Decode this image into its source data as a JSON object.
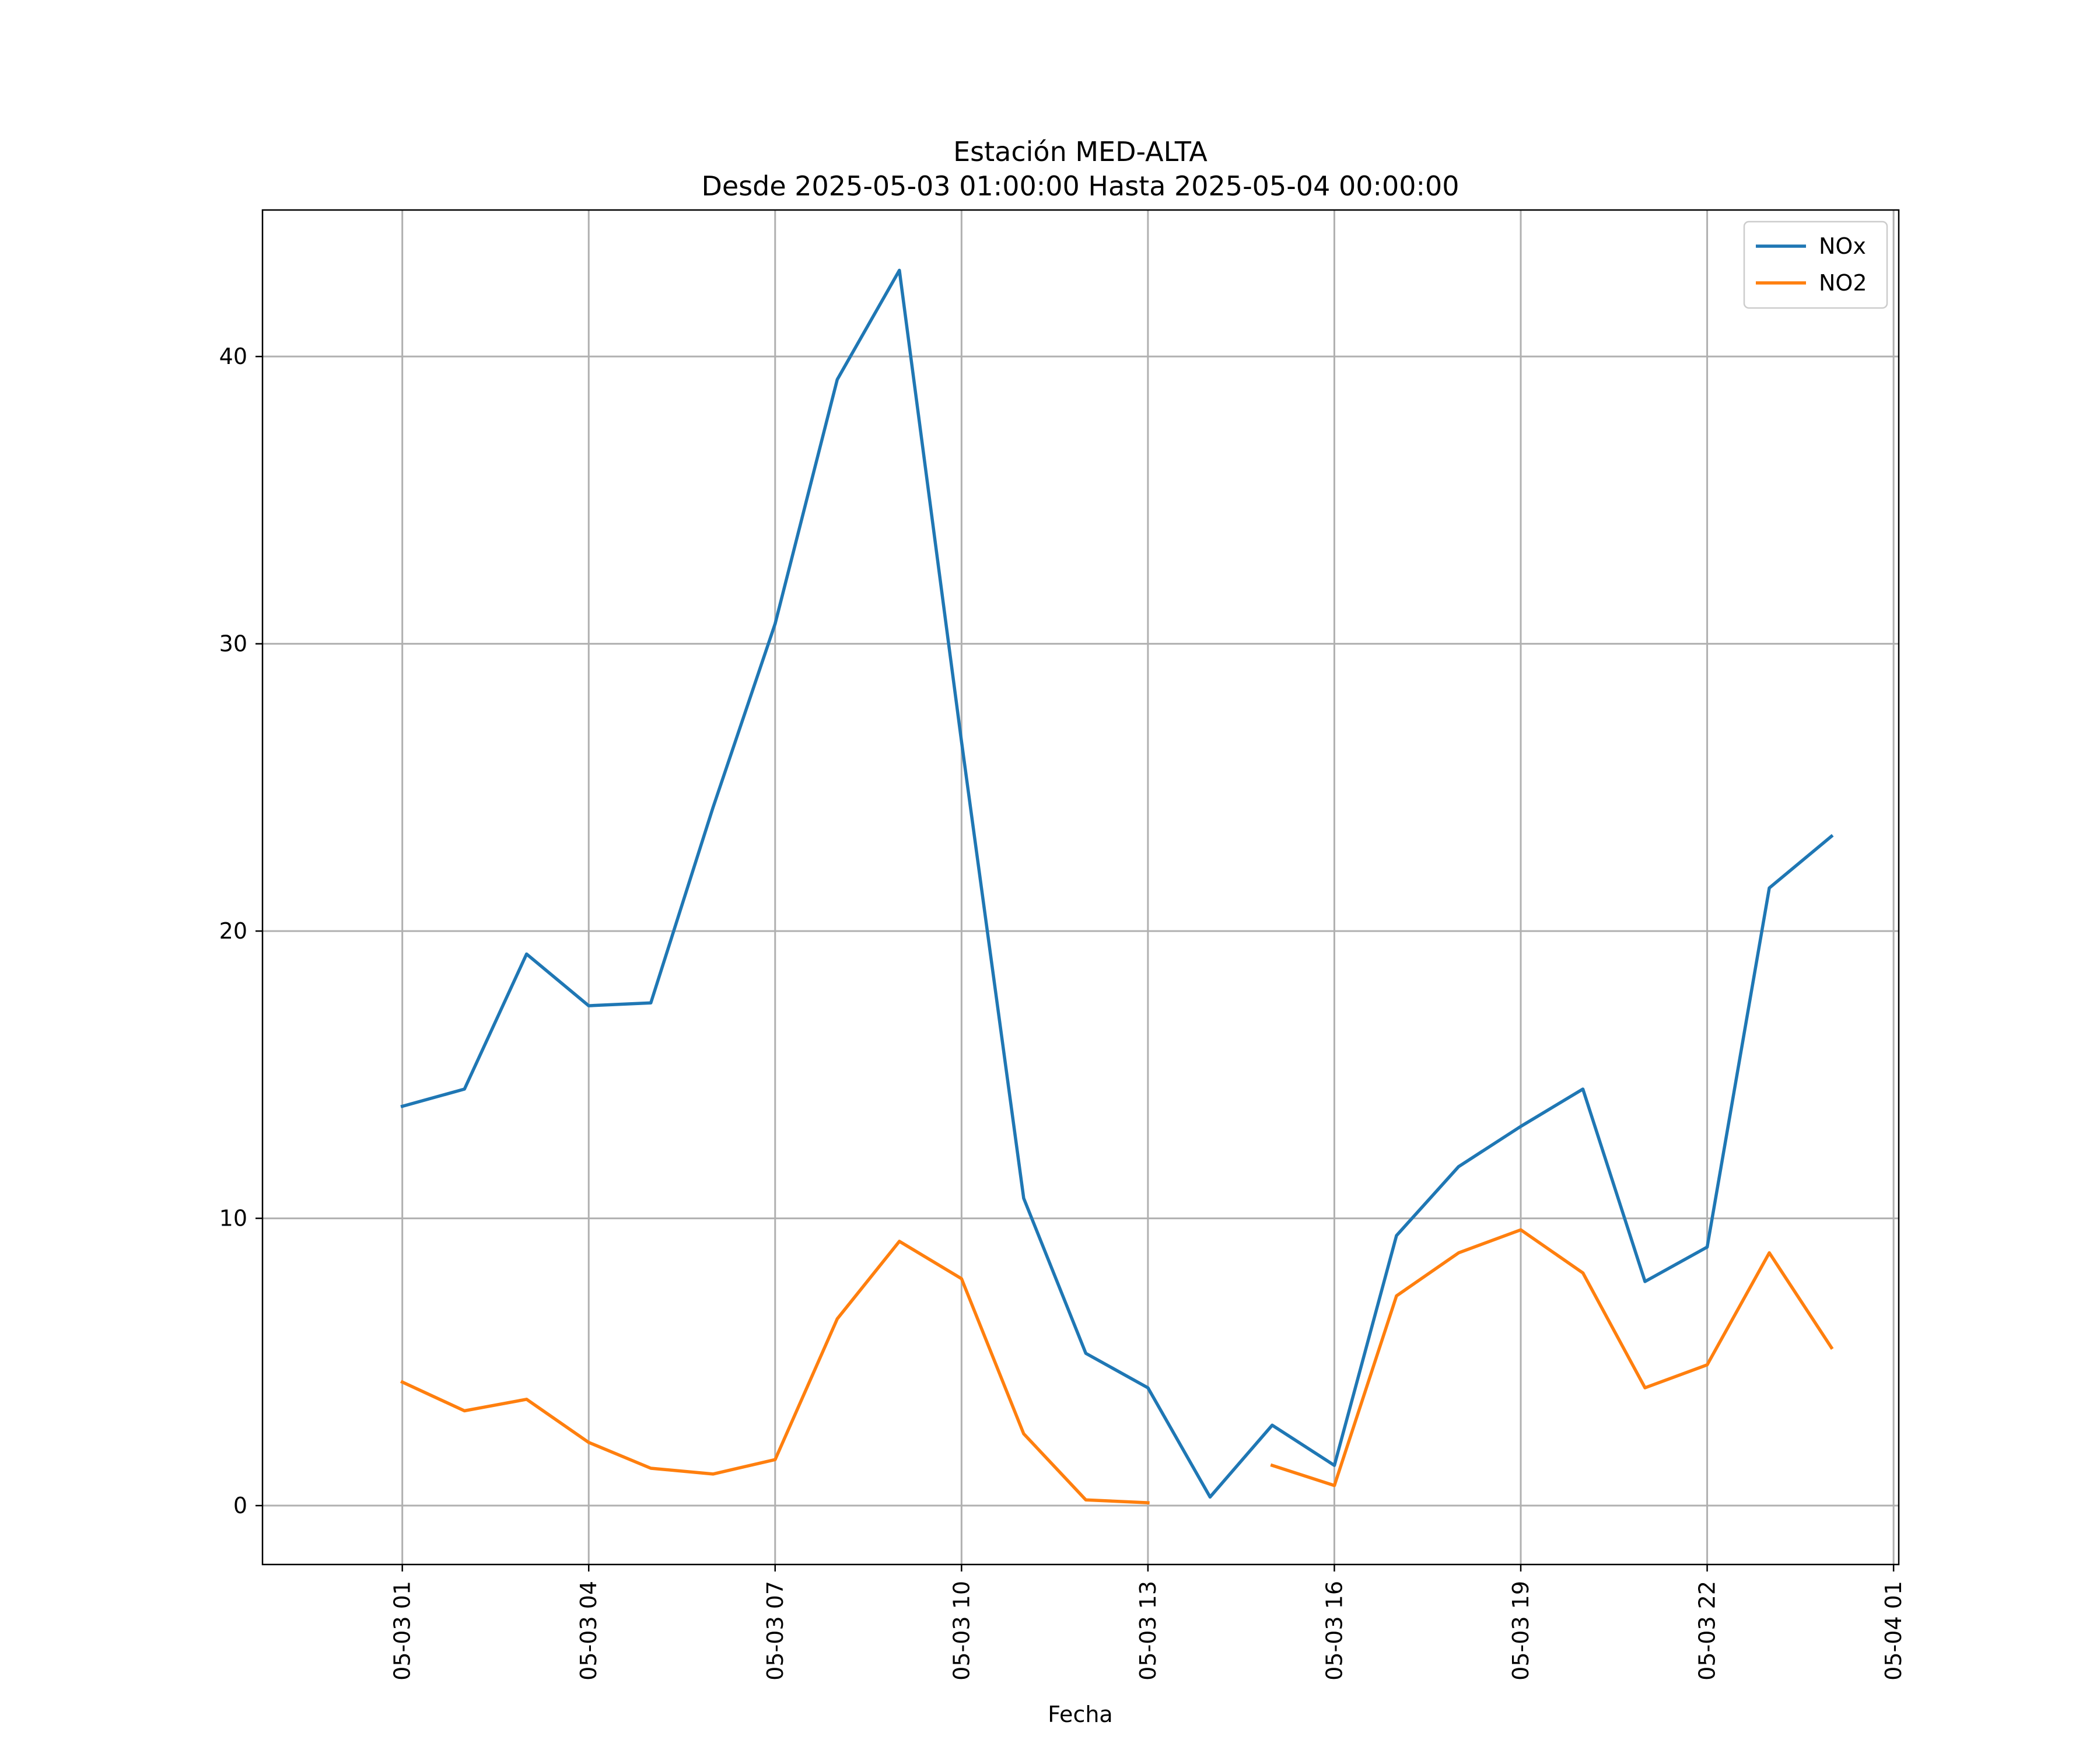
{
  "chart_data": {
    "type": "line",
    "title": "Estación MED-ALTA",
    "subtitle": "Desde 2025-05-03 01:00:00 Hasta 2025-05-04 00:00:00",
    "xlabel": "Fecha",
    "ylabel": "",
    "x": [
      "2025-05-03 01:00",
      "2025-05-03 02:00",
      "2025-05-03 03:00",
      "2025-05-03 04:00",
      "2025-05-03 05:00",
      "2025-05-03 06:00",
      "2025-05-03 07:00",
      "2025-05-03 08:00",
      "2025-05-03 09:00",
      "2025-05-03 10:00",
      "2025-05-03 11:00",
      "2025-05-03 12:00",
      "2025-05-03 13:00",
      "2025-05-03 14:00",
      "2025-05-03 15:00",
      "2025-05-03 16:00",
      "2025-05-03 17:00",
      "2025-05-03 18:00",
      "2025-05-03 19:00",
      "2025-05-03 20:00",
      "2025-05-03 21:00",
      "2025-05-03 22:00",
      "2025-05-03 23:00",
      "2025-05-04 00:00"
    ],
    "series": [
      {
        "name": "NOx",
        "color": "#1f77b4",
        "values": [
          13.9,
          14.5,
          19.2,
          17.4,
          17.5,
          24.3,
          30.7,
          39.2,
          43.0,
          26.6,
          10.7,
          5.3,
          4.1,
          0.3,
          2.8,
          1.4,
          9.4,
          11.8,
          13.2,
          14.5,
          7.8,
          9.0,
          21.5,
          23.3
        ]
      },
      {
        "name": "NO2",
        "color": "#ff7f0e",
        "values": [
          4.3,
          3.3,
          3.7,
          2.2,
          1.3,
          1.1,
          1.6,
          6.5,
          9.2,
          7.9,
          2.5,
          0.2,
          0.1,
          null,
          1.4,
          0.7,
          7.3,
          8.8,
          9.6,
          8.1,
          4.1,
          4.9,
          8.8,
          5.5
        ]
      }
    ],
    "xticks": [
      {
        "x": "2025-05-03 01:00",
        "label": "05-03 01"
      },
      {
        "x": "2025-05-03 04:00",
        "label": "05-03 04"
      },
      {
        "x": "2025-05-03 07:00",
        "label": "05-03 07"
      },
      {
        "x": "2025-05-03 10:00",
        "label": "05-03 10"
      },
      {
        "x": "2025-05-03 13:00",
        "label": "05-03 13"
      },
      {
        "x": "2025-05-03 16:00",
        "label": "05-03 16"
      },
      {
        "x": "2025-05-03 19:00",
        "label": "05-03 19"
      },
      {
        "x": "2025-05-03 22:00",
        "label": "05-03 22"
      },
      {
        "x": "2025-05-04 01:00",
        "label": "05-04 01"
      }
    ],
    "yticks": [
      0,
      10,
      20,
      30,
      40
    ],
    "xlim": [
      "2025-05-02 22:45",
      "2025-05-04 01:05"
    ],
    "ylim": [
      -2.05,
      45.1
    ],
    "grid": true,
    "legend": "top-right"
  }
}
